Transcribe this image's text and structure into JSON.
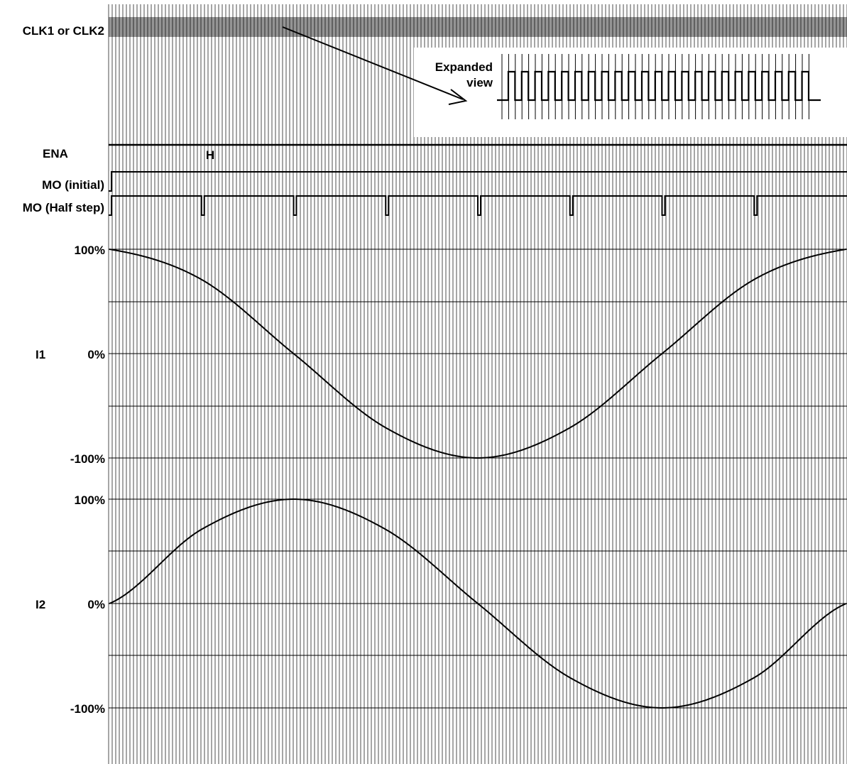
{
  "signals": {
    "clk": "CLK1 or CLK2",
    "ena": "ENA",
    "ena_level": "H",
    "mo_initial": "MO (initial)",
    "mo_half": "MO (Half step)",
    "i1": "I1",
    "i2": "I2"
  },
  "scale": {
    "i1_top": "100%",
    "i1_zero": "0%",
    "i1_bottom": "-100%",
    "i2_top": "100%",
    "i2_zero": "0%",
    "i2_bottom": "-100%"
  },
  "inset": {
    "line1": "Expanded",
    "line2": "view"
  },
  "colors": {
    "ink": "#000000",
    "background": "#ffffff"
  },
  "chart_data": {
    "type": "line",
    "title": "",
    "x_unit": "half step index",
    "x": [
      0,
      1,
      2,
      3,
      4,
      5,
      6,
      7,
      8
    ],
    "series": [
      {
        "name": "I1",
        "values": [
          100,
          71,
          0,
          -71,
          -100,
          -71,
          0,
          71,
          100
        ]
      },
      {
        "name": "I2",
        "values": [
          0,
          71,
          100,
          71,
          0,
          -71,
          -100,
          -71,
          0
        ]
      }
    ],
    "ylim": [
      -100,
      100
    ],
    "mo_half_step_pulses": 8
  }
}
